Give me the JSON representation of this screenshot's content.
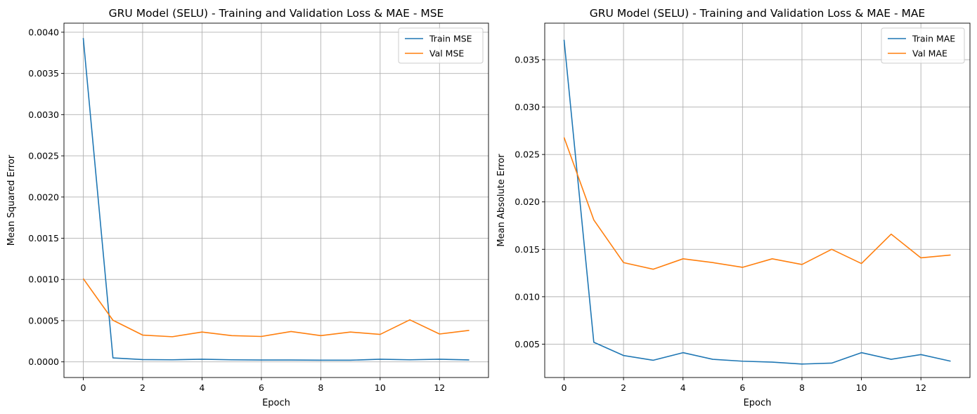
{
  "chart_data": [
    {
      "type": "line",
      "title": "GRU Model (SELU) - Training and Validation Loss & MAE - MSE",
      "xlabel": "Epoch",
      "ylabel": "Mean Squared Error",
      "x": [
        0,
        1,
        2,
        3,
        4,
        5,
        6,
        7,
        8,
        9,
        10,
        11,
        12,
        13
      ],
      "xlim": [
        -0.65,
        13.65
      ],
      "ylim": [
        -0.00019,
        0.00411
      ],
      "xticks": [
        0,
        2,
        4,
        6,
        8,
        10,
        12
      ],
      "xtick_labels": [
        "0",
        "2",
        "4",
        "6",
        "8",
        "10",
        "12"
      ],
      "yticks": [
        0,
        0.0005,
        0.001,
        0.0015,
        0.002,
        0.0025,
        0.003,
        0.0035,
        0.004
      ],
      "ytick_labels": [
        "0.0000",
        "0.0005",
        "0.0010",
        "0.0015",
        "0.0020",
        "0.0025",
        "0.0030",
        "0.0035",
        "0.0040"
      ],
      "grid": true,
      "legend_position": "top-right",
      "series": [
        {
          "name": "Train MSE",
          "color": "#1f77b4",
          "values": [
            0.00393,
            4.8e-05,
            2.8e-05,
            2.5e-05,
            3.2e-05,
            2.5e-05,
            2.2e-05,
            2.2e-05,
            2e-05,
            2e-05,
            3.2e-05,
            2.5e-05,
            3.2e-05,
            2.3e-05
          ]
        },
        {
          "name": "Val MSE",
          "color": "#ff7f0e",
          "values": [
            0.00101,
            0.000505,
            0.000325,
            0.000305,
            0.000362,
            0.000318,
            0.000308,
            0.000368,
            0.000318,
            0.000362,
            0.000333,
            0.00051,
            0.000338,
            0.000382
          ]
        }
      ]
    },
    {
      "type": "line",
      "title": "GRU Model (SELU) - Training and Validation Loss & MAE - MAE",
      "xlabel": "Epoch",
      "ylabel": "Mean Absolute Error",
      "x": [
        0,
        1,
        2,
        3,
        4,
        5,
        6,
        7,
        8,
        9,
        10,
        11,
        12,
        13
      ],
      "xlim": [
        -0.65,
        13.65
      ],
      "ylim": [
        0.00148,
        0.03885
      ],
      "xticks": [
        0,
        2,
        4,
        6,
        8,
        10,
        12
      ],
      "xtick_labels": [
        "0",
        "2",
        "4",
        "6",
        "8",
        "10",
        "12"
      ],
      "yticks": [
        0.005,
        0.01,
        0.015,
        0.02,
        0.025,
        0.03,
        0.035
      ],
      "ytick_labels": [
        "0.005",
        "0.010",
        "0.015",
        "0.020",
        "0.025",
        "0.030",
        "0.035"
      ],
      "grid": true,
      "legend_position": "top-right",
      "series": [
        {
          "name": "Train MAE",
          "color": "#1f77b4",
          "values": [
            0.0371,
            0.0052,
            0.0038,
            0.0033,
            0.0041,
            0.0034,
            0.0032,
            0.0031,
            0.0029,
            0.003,
            0.0041,
            0.0034,
            0.0039,
            0.0032
          ]
        },
        {
          "name": "Val MAE",
          "color": "#ff7f0e",
          "values": [
            0.0268,
            0.0181,
            0.0136,
            0.0129,
            0.014,
            0.0136,
            0.0131,
            0.014,
            0.0134,
            0.015,
            0.0135,
            0.0166,
            0.0141,
            0.0144
          ]
        }
      ]
    }
  ]
}
